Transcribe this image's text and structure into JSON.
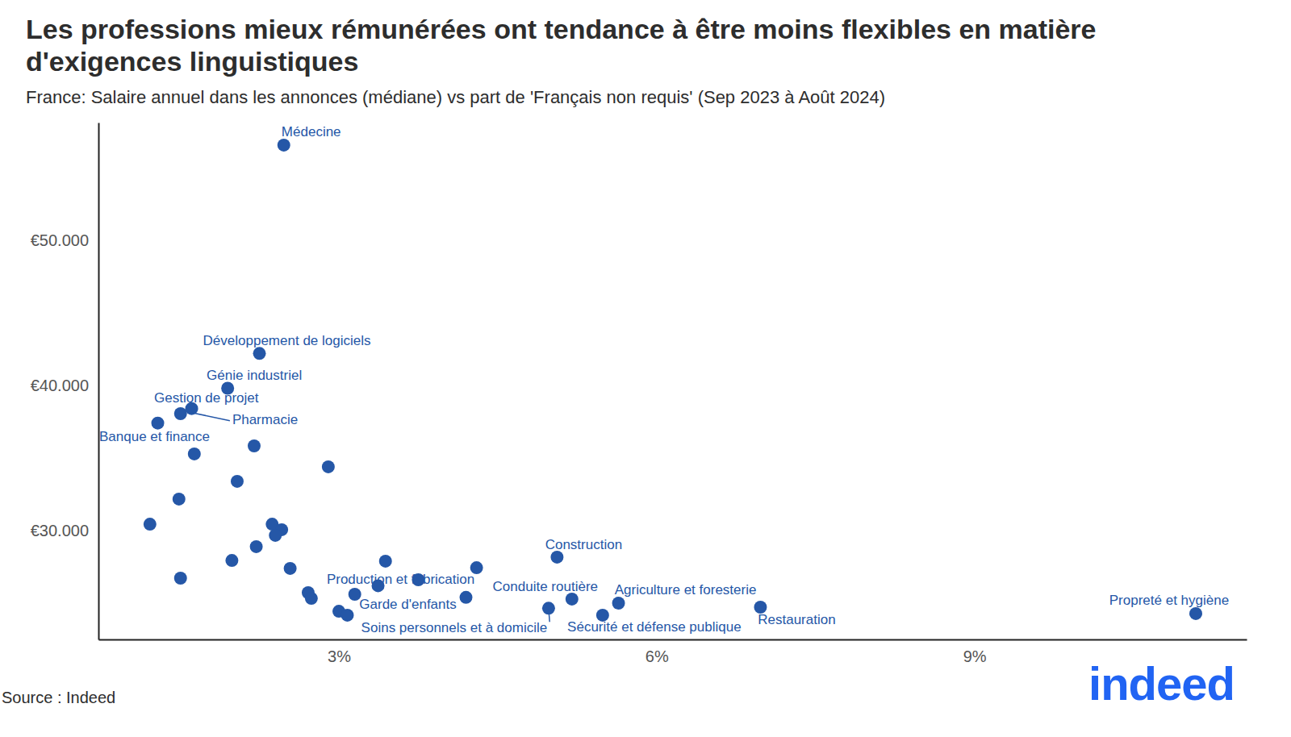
{
  "chart_data": {
    "type": "scatter",
    "title": "Les professions mieux rémunérées ont tendance à être moins flexibles en matière d'exigences linguistiques",
    "subtitle": "France: Salaire annuel dans les annonces (médiane) vs part de 'Français non requis' (Sep 2023 à Août 2024)",
    "source": "Source : Indeed",
    "logo": "indeed",
    "color": "#2557a7",
    "x": [
      2.48,
      2.25,
      1.95,
      1.505,
      1.61,
      1.29,
      3.37,
      4.2,
      4.98,
      5.2,
      5.06,
      5.49,
      5.64,
      6.98,
      11.09,
      2.2,
      1.635,
      2.9,
      2.04,
      1.49,
      1.216,
      2.37,
      2.46,
      2.4,
      2.22,
      1.99,
      1.505,
      2.54,
      3.44,
      3.75,
      4.3,
      2.71,
      2.74,
      3.0,
      3.08,
      3.15
    ],
    "values": [
      56550,
      42200,
      39800,
      38050,
      38400,
      37400,
      26200,
      25400,
      24650,
      25280,
      28170,
      24170,
      25000,
      24720,
      24280,
      35830,
      35280,
      34390,
      33390,
      32170,
      30440,
      30440,
      30060,
      29670,
      28890,
      27940,
      26720,
      27390,
      27890,
      26610,
      27440,
      25720,
      25330,
      24440,
      24170,
      25610
    ],
    "labels": [
      "Médecine",
      "Développement de logiciels",
      "Génie industriel",
      "Gestion de projet",
      "Pharmacie",
      "Banque et finance",
      "Production et fabrication",
      "Garde d'enfants",
      "Soins personnels et à domicile",
      "Conduite routière",
      "Construction",
      "Sécurité et défense publique",
      "Agriculture et foresterie",
      "Restauration",
      "Propreté et hygiène",
      null,
      null,
      null,
      null,
      null,
      null,
      null,
      null,
      null,
      null,
      null,
      null,
      null,
      null,
      null,
      null,
      null,
      null,
      null,
      null,
      null
    ],
    "xlim": [
      0.73,
      11.57
    ],
    "ylim": [
      22500,
      58100
    ],
    "xticks": [
      {
        "value": 3,
        "label": "3%"
      },
      {
        "value": 6,
        "label": "6%"
      },
      {
        "value": 9,
        "label": "9%"
      }
    ],
    "yticks": [
      {
        "value": 30000,
        "label": "€30.000"
      },
      {
        "value": 40000,
        "label": "€40.000"
      },
      {
        "value": 50000,
        "label": "€50.000"
      }
    ],
    "grid": false
  }
}
